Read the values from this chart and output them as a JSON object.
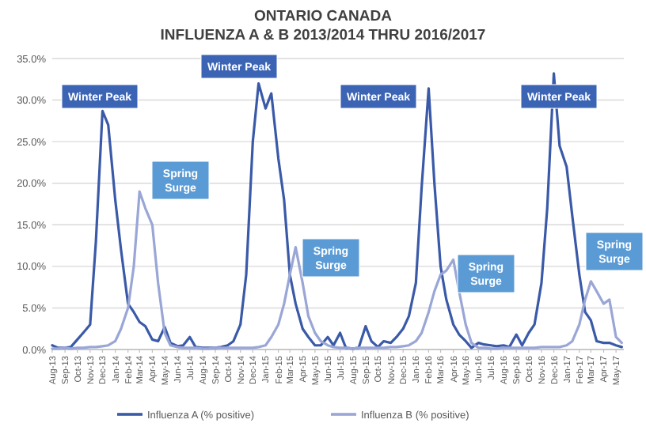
{
  "chart_data": {
    "type": "line",
    "title": "ONTARIO CANADA\nINFLUENZA A & B 2013/2014 THRU 2016/2017",
    "x": [
      "2013-08-01",
      "2013-08-15",
      "2013-09-01",
      "2013-09-15",
      "2013-10-01",
      "2013-10-15",
      "2013-11-01",
      "2013-11-15",
      "2013-12-01",
      "2013-12-15",
      "2014-01-01",
      "2014-01-15",
      "2014-02-01",
      "2014-02-15",
      "2014-03-01",
      "2014-03-15",
      "2014-04-01",
      "2014-04-15",
      "2014-05-01",
      "2014-05-15",
      "2014-06-01",
      "2014-06-15",
      "2014-07-01",
      "2014-07-15",
      "2014-08-01",
      "2014-08-15",
      "2014-09-01",
      "2014-09-15",
      "2014-10-01",
      "2014-10-15",
      "2014-11-01",
      "2014-11-15",
      "2014-12-01",
      "2014-12-15",
      "2015-01-01",
      "2015-01-15",
      "2015-02-01",
      "2015-02-15",
      "2015-03-01",
      "2015-03-15",
      "2015-04-01",
      "2015-04-15",
      "2015-05-01",
      "2015-05-15",
      "2015-06-01",
      "2015-06-15",
      "2015-07-01",
      "2015-07-15",
      "2015-08-01",
      "2015-08-15",
      "2015-09-01",
      "2015-09-15",
      "2015-10-01",
      "2015-10-15",
      "2015-11-01",
      "2015-11-15",
      "2015-12-01",
      "2015-12-15",
      "2016-01-01",
      "2016-01-15",
      "2016-02-01",
      "2016-02-15",
      "2016-03-01",
      "2016-03-15",
      "2016-04-01",
      "2016-04-15",
      "2016-05-01",
      "2016-05-15",
      "2016-06-01",
      "2016-06-15",
      "2016-07-01",
      "2016-07-15",
      "2016-08-01",
      "2016-08-15",
      "2016-09-01",
      "2016-09-15",
      "2016-10-01",
      "2016-10-15",
      "2016-11-01",
      "2016-11-15",
      "2016-12-01",
      "2016-12-15",
      "2017-01-01",
      "2017-01-15",
      "2017-02-01",
      "2017-02-15",
      "2017-03-01",
      "2017-03-15",
      "2017-04-01",
      "2017-04-15",
      "2017-05-01",
      "2017-05-15"
    ],
    "series": [
      {
        "name": "Influenza A (% positive)",
        "color": "#3a5aa8",
        "values": [
          0.5,
          0.2,
          0.2,
          0.3,
          1.2,
          2.0,
          3.0,
          13,
          28.7,
          27,
          18,
          12,
          5.5,
          4.5,
          3.3,
          2.8,
          1.2,
          1.0,
          2.7,
          0.8,
          0.4,
          0.5,
          1.5,
          0.3,
          0.2,
          0.2,
          0.2,
          0.3,
          0.5,
          1.0,
          3,
          9,
          25,
          32,
          29,
          30.8,
          23,
          18,
          9,
          5.5,
          2.5,
          1.5,
          0.5,
          0.5,
          1.5,
          0.5,
          2.0,
          0.2,
          0.1,
          0.2,
          2.8,
          1.0,
          0.3,
          1.0,
          0.8,
          1.5,
          2.5,
          4,
          8,
          19.5,
          31.4,
          20,
          10,
          6,
          3,
          1.8,
          1,
          0.2,
          0.8,
          0.6,
          0.5,
          0.4,
          0.5,
          0.3,
          1.8,
          0.5,
          2.0,
          3,
          8,
          17,
          33.2,
          24.5,
          22,
          16,
          9,
          4.5,
          3.5,
          1.0,
          0.8,
          0.8,
          0.5,
          0.3
        ]
      },
      {
        "name": "Influenza B (% positive)",
        "color": "#9aa6d6",
        "values": [
          0.1,
          0.1,
          0.2,
          0.1,
          0.2,
          0.2,
          0.3,
          0.3,
          0.4,
          0.5,
          1,
          2.5,
          5,
          10,
          19,
          17,
          15,
          8,
          2,
          0.5,
          0.3,
          0.2,
          0.2,
          0.2,
          0.1,
          0.1,
          0.2,
          0.2,
          0.2,
          0.2,
          0.2,
          0.2,
          0.2,
          0.3,
          0.5,
          1.5,
          3,
          5.5,
          9,
          12.3,
          8,
          4,
          2,
          1,
          0.5,
          0.3,
          0.2,
          0.2,
          0.1,
          0.2,
          0.2,
          0.2,
          0.2,
          0.2,
          0.3,
          0.3,
          0.4,
          0.5,
          1,
          2,
          4.5,
          7,
          9,
          9.5,
          10.8,
          7,
          3,
          0.8,
          0.2,
          0.2,
          0.1,
          0.1,
          0.2,
          0.2,
          0.2,
          0.2,
          0.2,
          0.2,
          0.3,
          0.3,
          0.3,
          0.3,
          0.5,
          1,
          3,
          6,
          8.2,
          7,
          5.5,
          6,
          1.5,
          0.8
        ]
      }
    ],
    "xlim": [
      "2013-08-01",
      "2017-05-20"
    ],
    "xticks": [
      {
        "value": "2013-08-01",
        "label": "Aug-13"
      },
      {
        "value": "2013-09-01",
        "label": "Sep-13"
      },
      {
        "value": "2013-10-01",
        "label": "Oct-13"
      },
      {
        "value": "2013-11-01",
        "label": "Nov-13"
      },
      {
        "value": "2013-12-01",
        "label": "Dec-13"
      },
      {
        "value": "2014-01-01",
        "label": "Jan-14"
      },
      {
        "value": "2014-02-01",
        "label": "Feb-14"
      },
      {
        "value": "2014-03-01",
        "label": "Mar-14"
      },
      {
        "value": "2014-04-01",
        "label": "Apr-14"
      },
      {
        "value": "2014-05-01",
        "label": "May-14"
      },
      {
        "value": "2014-06-01",
        "label": "Jun-14"
      },
      {
        "value": "2014-07-01",
        "label": "Jul-14"
      },
      {
        "value": "2014-08-01",
        "label": "Aug-14"
      },
      {
        "value": "2014-09-01",
        "label": "Sep-14"
      },
      {
        "value": "2014-10-01",
        "label": "Oct-14"
      },
      {
        "value": "2014-11-01",
        "label": "Nov-14"
      },
      {
        "value": "2014-12-01",
        "label": "Dec-14"
      },
      {
        "value": "2015-01-01",
        "label": "Jan-15"
      },
      {
        "value": "2015-02-01",
        "label": "Feb-15"
      },
      {
        "value": "2015-03-01",
        "label": "Mar-15"
      },
      {
        "value": "2015-04-01",
        "label": "Apr-15"
      },
      {
        "value": "2015-05-01",
        "label": "May-15"
      },
      {
        "value": "2015-06-01",
        "label": "Jun-15"
      },
      {
        "value": "2015-07-01",
        "label": "Jul-15"
      },
      {
        "value": "2015-08-01",
        "label": "Aug-15"
      },
      {
        "value": "2015-09-01",
        "label": "Sep-15"
      },
      {
        "value": "2015-10-01",
        "label": "Oct-15"
      },
      {
        "value": "2015-11-01",
        "label": "Nov-15"
      },
      {
        "value": "2015-12-01",
        "label": "Dec-15"
      },
      {
        "value": "2016-01-01",
        "label": "Jan-16"
      },
      {
        "value": "2016-02-01",
        "label": "Feb-16"
      },
      {
        "value": "2016-03-01",
        "label": "Mar-16"
      },
      {
        "value": "2016-04-01",
        "label": "Apr-16"
      },
      {
        "value": "2016-05-01",
        "label": "May-16"
      },
      {
        "value": "2016-06-01",
        "label": "Jun-16"
      },
      {
        "value": "2016-07-01",
        "label": "Jul-16"
      },
      {
        "value": "2016-08-01",
        "label": "Aug-16"
      },
      {
        "value": "2016-09-01",
        "label": "Sep-16"
      },
      {
        "value": "2016-10-01",
        "label": "Oct-16"
      },
      {
        "value": "2016-11-01",
        "label": "Nov-16"
      },
      {
        "value": "2016-12-01",
        "label": "Dec-16"
      },
      {
        "value": "2017-01-01",
        "label": "Jan-17"
      },
      {
        "value": "2017-02-01",
        "label": "Feb-17"
      },
      {
        "value": "2017-03-01",
        "label": "Mar-17"
      },
      {
        "value": "2017-04-01",
        "label": "Apr-17"
      },
      {
        "value": "2017-05-01",
        "label": "May-17"
      }
    ],
    "ylim": [
      0,
      35
    ],
    "yticks": [
      {
        "value": 0,
        "label": "0.0%"
      },
      {
        "value": 5,
        "label": "5.0%"
      },
      {
        "value": 10,
        "label": "10.0%"
      },
      {
        "value": 15,
        "label": "15.0%"
      },
      {
        "value": 20,
        "label": "20.0%"
      },
      {
        "value": 25,
        "label": "25.0%"
      },
      {
        "value": 30,
        "label": "30.0%"
      },
      {
        "value": 35,
        "label": "35.0%"
      }
    ],
    "grid": "y",
    "legend": "bottom",
    "marker": "none",
    "line_style": "solid",
    "annotations": [
      "Winter Peak",
      "Spring Surge",
      "Winter Peak",
      "Spring Surge",
      "Winter Peak",
      "Spring Surge",
      "Winter Peak",
      "Spring Surge"
    ]
  }
}
